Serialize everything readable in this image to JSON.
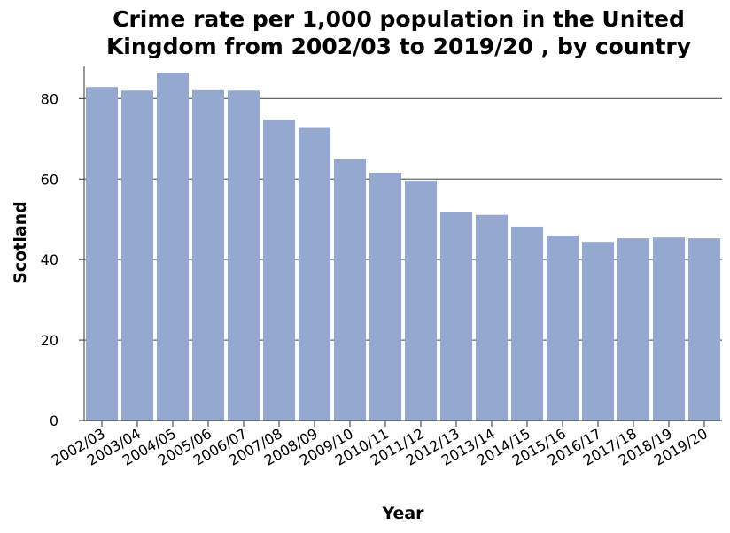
{
  "chart_data": {
    "type": "bar",
    "title_lines": [
      "Crime rate per 1,000 population in the United",
      "Kingdom from 2002/03 to 2019/20 , by country"
    ],
    "xlabel": "Year",
    "ylabel": "Scotland",
    "categories": [
      "2002/03",
      "2003/04",
      "2004/05",
      "2005/06",
      "2006/07",
      "2007/08",
      "2008/09",
      "2009/10",
      "2010/11",
      "2011/12",
      "2012/13",
      "2013/14",
      "2014/15",
      "2015/16",
      "2016/17",
      "2017/18",
      "2018/19",
      "2019/20"
    ],
    "values": [
      82.9,
      82.0,
      86.4,
      82.1,
      82.0,
      74.8,
      72.7,
      64.9,
      61.6,
      59.6,
      51.7,
      51.1,
      48.2,
      46.0,
      44.4,
      45.3,
      45.5,
      45.3
    ],
    "ylim": [
      0,
      88
    ],
    "yticks": [
      0,
      20,
      40,
      60,
      80
    ],
    "grid": true,
    "bar_color": "#94a8d0",
    "grid_color": "#666666"
  }
}
